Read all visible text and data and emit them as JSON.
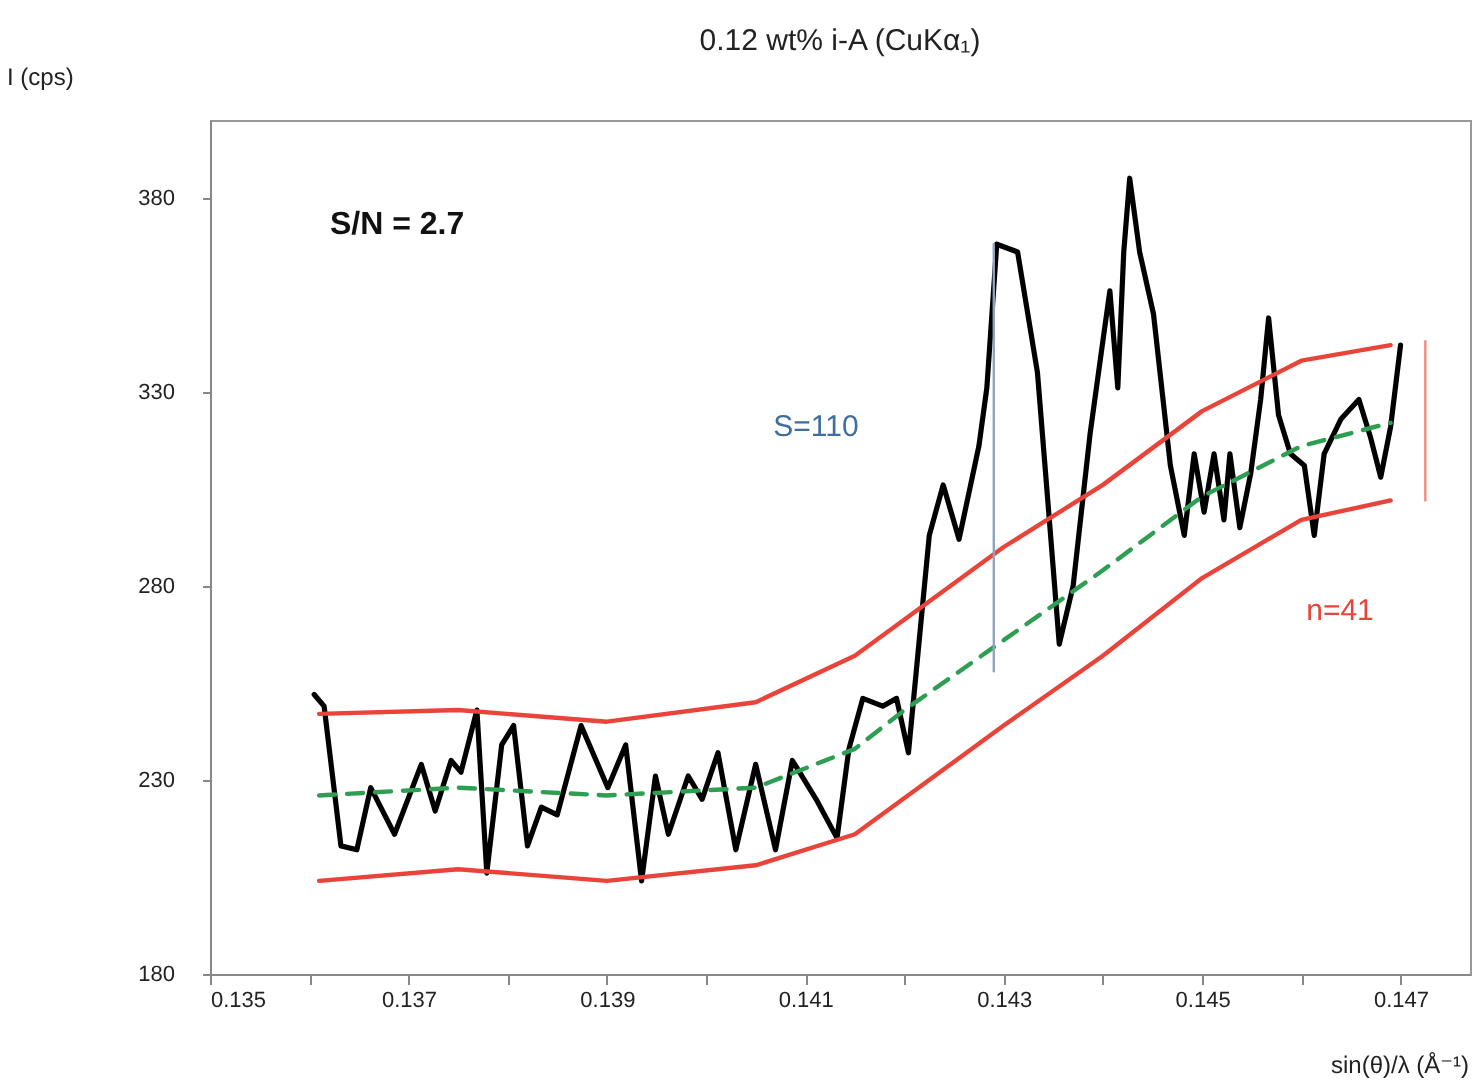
{
  "chart_data": {
    "type": "line",
    "title": "0.12 wt% i-A (CuKα₁)",
    "xlabel": "sin(θ)/λ (Å⁻¹)",
    "ylabel": "I (cps)",
    "xlim": [
      0.135,
      0.1477
    ],
    "ylim": [
      180,
      400
    ],
    "xticks": [
      0.135,
      {
        "value": 0.136,
        "label": null
      },
      0.137,
      {
        "value": 0.138,
        "label": null
      },
      0.139,
      {
        "value": 0.14,
        "label": null
      },
      0.141,
      {
        "value": 0.142,
        "label": null
      },
      0.143,
      {
        "value": 0.144,
        "label": null
      },
      0.145,
      {
        "value": 0.146,
        "label": null
      },
      0.147
    ],
    "yticks": [
      180,
      230,
      280,
      330,
      380
    ],
    "grid": false,
    "annotations": [
      "S/N = 2.7",
      "S=110",
      "n=41"
    ],
    "series": [
      {
        "color": "#000000",
        "x": [
          0.13605,
          0.13615,
          0.13632,
          0.13648,
          0.13662,
          0.13686,
          0.13713,
          0.13727,
          0.13743,
          0.13753,
          0.13769,
          0.13779,
          0.13794,
          0.13806,
          0.1382,
          0.13834,
          0.1385,
          0.13874,
          0.13901,
          0.13919,
          0.13935,
          0.13949,
          0.13962,
          0.13982,
          0.13996,
          0.14012,
          0.1403,
          0.1405,
          0.1407,
          0.14087,
          0.14111,
          0.14132,
          0.14144,
          0.14158,
          0.14178,
          0.14192,
          0.14204,
          0.14225,
          0.14239,
          0.14255,
          0.14275,
          0.14283,
          0.14293,
          0.14314,
          0.14334,
          0.14346,
          0.14356,
          0.1437,
          0.14387,
          0.14401,
          0.14407,
          0.14415,
          0.14421,
          0.14427,
          0.14437,
          0.14451,
          0.14468,
          0.14482,
          0.14492,
          0.14502,
          0.14512,
          0.14522,
          0.14528,
          0.14538,
          0.14549,
          0.14559,
          0.14567,
          0.14577,
          0.14589,
          0.14603,
          0.14613,
          0.14623,
          0.1464,
          0.14658,
          0.1467,
          0.1468,
          0.1469,
          0.147
        ],
        "values": [
          252,
          249,
          213,
          212,
          228,
          216,
          234,
          222,
          235,
          232,
          248,
          206,
          239,
          244,
          213,
          223,
          221,
          244,
          228,
          239,
          204,
          231,
          216,
          231,
          225,
          237,
          212,
          234,
          212,
          235,
          225,
          215,
          238,
          251,
          249,
          251,
          237,
          293,
          306,
          292,
          316,
          331,
          368,
          366,
          335,
          297,
          265,
          280,
          319,
          345,
          356,
          331,
          366,
          385,
          366,
          350,
          311,
          293,
          314,
          299,
          314,
          297,
          314,
          295,
          309,
          328,
          349,
          324,
          314,
          311,
          293,
          314,
          323,
          328,
          318,
          308,
          321,
          342
        ]
      },
      {
        "color": "#2e9e52",
        "line_style": "dashed",
        "x": [
          0.1361,
          0.1375,
          0.139,
          0.1405,
          0.1415,
          0.142,
          0.143,
          0.144,
          0.145,
          0.146,
          0.1469
        ],
        "values": [
          226,
          228,
          226,
          228,
          238,
          248,
          266,
          284,
          303,
          316,
          322
        ]
      },
      {
        "color": "#e8443a",
        "x": [
          0.1361,
          0.1375,
          0.139,
          0.1405,
          0.1415,
          0.143,
          0.144,
          0.145,
          0.146,
          0.1469
        ],
        "values": [
          247,
          248,
          245,
          250,
          262,
          290,
          306,
          325,
          338,
          342
        ]
      },
      {
        "color": "#e8443a",
        "x": [
          0.1361,
          0.1375,
          0.139,
          0.1405,
          0.1415,
          0.143,
          0.144,
          0.145,
          0.146,
          0.1469
        ],
        "values": [
          204,
          207,
          204,
          208,
          216,
          244,
          262,
          282,
          297,
          302
        ]
      },
      {
        "color": "#8fa3c0",
        "x": [
          0.1429,
          0.1429
        ],
        "values": [
          258,
          368
        ]
      },
      {
        "color": "#f08a80",
        "x": [
          0.14725,
          0.14725
        ],
        "values": [
          302,
          343
        ]
      }
    ]
  }
}
